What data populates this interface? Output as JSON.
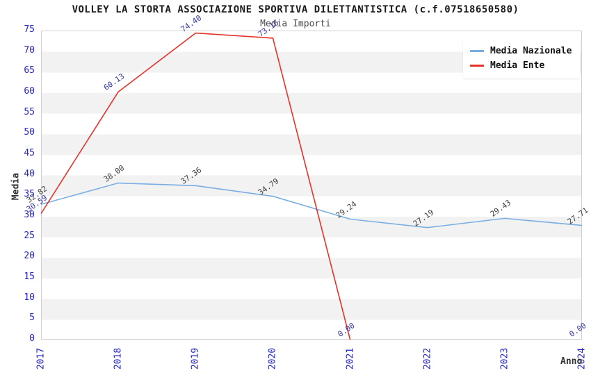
{
  "chart_data": {
    "type": "line",
    "title": "VOLLEY LA STORTA ASSOCIAZIONE SPORTIVA DILETTANTISTICA (c.f.07518650580)",
    "subtitle": "Media Importi",
    "xlabel": "Anno",
    "ylabel": "Media",
    "x": [
      "2017",
      "2018",
      "2019",
      "2020",
      "2021",
      "2022",
      "2023",
      "2024"
    ],
    "series": [
      {
        "name": "Media Nazionale",
        "color": "#79AEE3",
        "label_color": "#3F3F3F",
        "values": [
          32.82,
          38.0,
          37.36,
          34.79,
          29.24,
          27.19,
          29.43,
          27.71
        ]
      },
      {
        "name": "Media Ente",
        "color": "#E63229",
        "label_color": "#3434A0",
        "values": [
          30.59,
          60.13,
          74.4,
          73.16,
          0.0,
          null,
          null,
          0.0
        ]
      }
    ],
    "ylim": [
      0,
      75
    ],
    "ytick_step": 5,
    "grid": "horizontal-bands",
    "legend_position": "top-right",
    "colors": {
      "tick_label": "#2323C8",
      "axis_label": "#333333",
      "band_alt": "#F2F2F2",
      "plot_border": "#D0D0D0",
      "title": "#1A1A1A",
      "subtitle": "#4A4A4A"
    }
  }
}
